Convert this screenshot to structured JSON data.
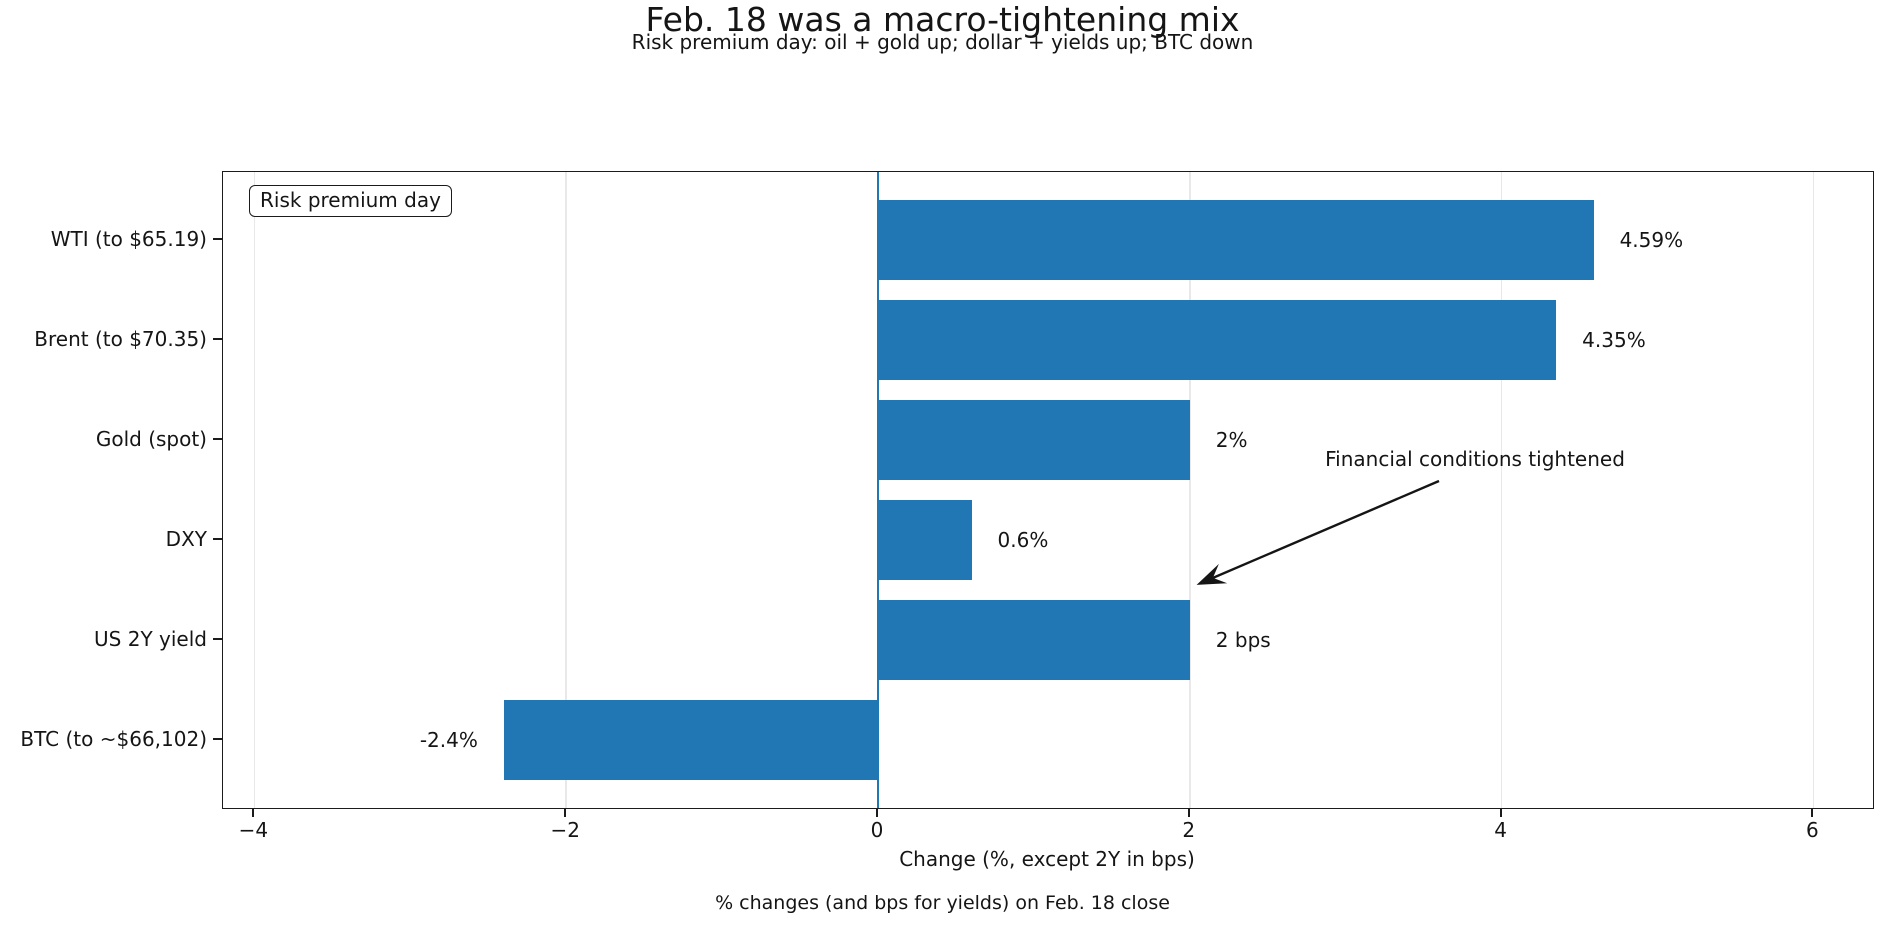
{
  "figure": {
    "title": "Feb. 18 was a macro-tightening mix",
    "subtitle": "Risk premium day: oil + gold up; dollar + yields up; BTC down",
    "footer": "% changes (and bps for yields) on Feb. 18 close"
  },
  "legend": {
    "label": "Risk premium day"
  },
  "annotation": {
    "text": "Financial conditions tightened"
  },
  "colors": {
    "bar": "#2077b4",
    "zero_line": "#1f77b4",
    "grid": "#e8e8e8",
    "spine": "#1b1b1b",
    "text": "#151515"
  },
  "chart_data": {
    "type": "bar",
    "orientation": "horizontal",
    "title": "Feb. 18 was a macro-tightening mix",
    "subtitle": "Risk premium day: oil + gold up; dollar + yields up; BTC down",
    "xlabel": "Change (%, except 2Y in bps)",
    "ylabel": "",
    "categories": [
      "WTI (to $65.19)",
      "Brent (to $70.35)",
      "Gold (spot)",
      "DXY",
      "US 2Y yield",
      "BTC (to ~$66,102)"
    ],
    "values": [
      4.59,
      4.35,
      2.0,
      0.6,
      2.0,
      -2.4
    ],
    "units": [
      "%",
      "%",
      "%",
      "%",
      "bps",
      "%"
    ],
    "value_labels": [
      "4.59%",
      "4.35%",
      "2%",
      "0.6%",
      "2 bps",
      "-2.4%"
    ],
    "x_ticks": [
      {
        "value": -4,
        "label": "−4"
      },
      {
        "value": -2,
        "label": "−2"
      },
      {
        "value": 0,
        "label": "0"
      },
      {
        "value": 2,
        "label": "2"
      },
      {
        "value": 4,
        "label": "4"
      },
      {
        "value": 6,
        "label": "6"
      }
    ],
    "xlim": [
      -4.2,
      6.38
    ],
    "grid": true,
    "zero_line": true,
    "legend_text": "Risk premium day",
    "legend_position": "upper left",
    "annotation_text": "Financial conditions tightened",
    "footnote": "% changes (and bps for yields) on Feb. 18 close"
  }
}
